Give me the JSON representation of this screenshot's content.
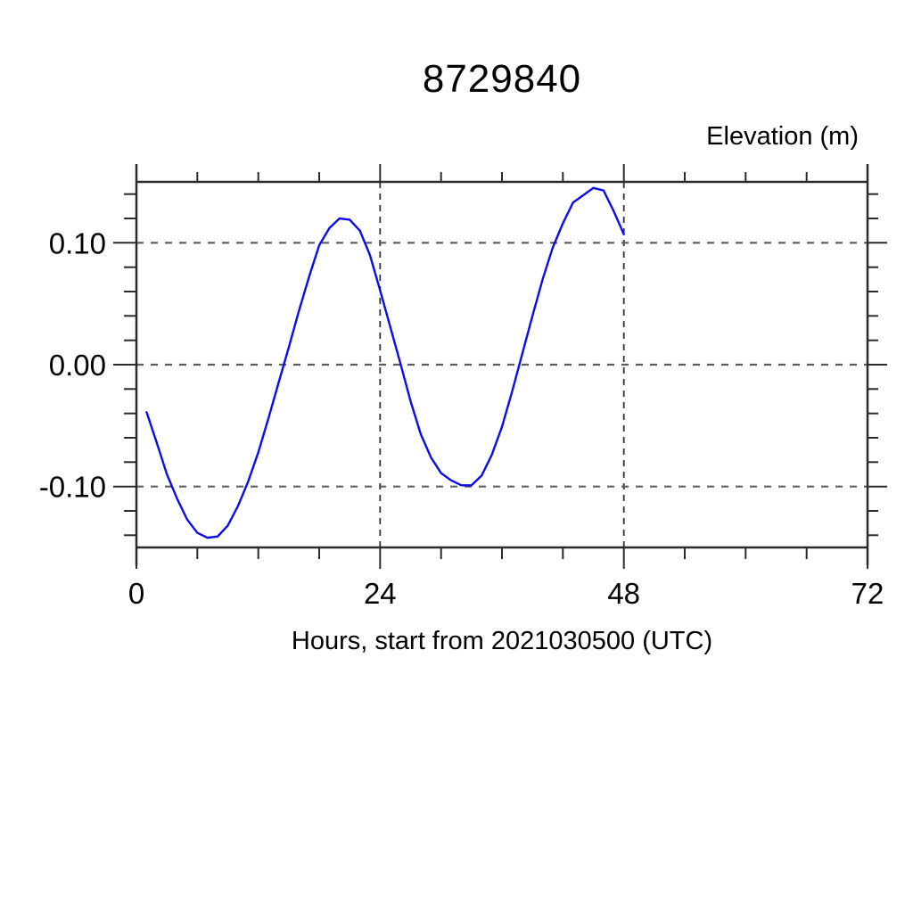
{
  "chart_data": {
    "type": "line",
    "title": "8729840",
    "xlabel": "Hours, start from 2021030500 (UTC)",
    "ylabel": "Elevation (m)",
    "xlim": [
      0,
      72
    ],
    "ylim": [
      -0.15,
      0.15
    ],
    "x_major_ticks": [
      0,
      24,
      48,
      72
    ],
    "x_tick_labels": [
      "0",
      "24",
      "48",
      "72"
    ],
    "x_minor_tick_interval": 6,
    "y_major_ticks": [
      -0.1,
      0.0,
      0.1
    ],
    "y_tick_labels": [
      "-0.10",
      "0.00",
      "0.10"
    ],
    "y_minor_tick_interval": 0.02,
    "grid": "dashed lines at major ticks, ticks outside frame on all four sides",
    "legend_position": "none",
    "line_color": "#0b0bf0",
    "series": [
      {
        "name": "elevation",
        "x": [
          1,
          2,
          3,
          4,
          5,
          6,
          7,
          8,
          9,
          10,
          11,
          12,
          13,
          14,
          15,
          16,
          17,
          18,
          19,
          20,
          21,
          22,
          23,
          24,
          25,
          26,
          27,
          28,
          29,
          30,
          31,
          32,
          33,
          34,
          35,
          36,
          37,
          38,
          39,
          40,
          41,
          42,
          43,
          44,
          45,
          46,
          47,
          48
        ],
        "y": [
          -0.039,
          -0.064,
          -0.09,
          -0.11,
          -0.127,
          -0.138,
          -0.142,
          -0.141,
          -0.132,
          -0.116,
          -0.096,
          -0.072,
          -0.044,
          -0.015,
          0.014,
          0.044,
          0.072,
          0.098,
          0.112,
          0.12,
          0.119,
          0.11,
          0.09,
          0.061,
          0.031,
          0.001,
          -0.03,
          -0.057,
          -0.076,
          -0.089,
          -0.095,
          -0.099,
          -0.099,
          -0.091,
          -0.074,
          -0.051,
          -0.022,
          0.009,
          0.04,
          0.07,
          0.096,
          0.116,
          0.133,
          0.139,
          0.145,
          0.143,
          0.126,
          0.107
        ]
      }
    ]
  }
}
